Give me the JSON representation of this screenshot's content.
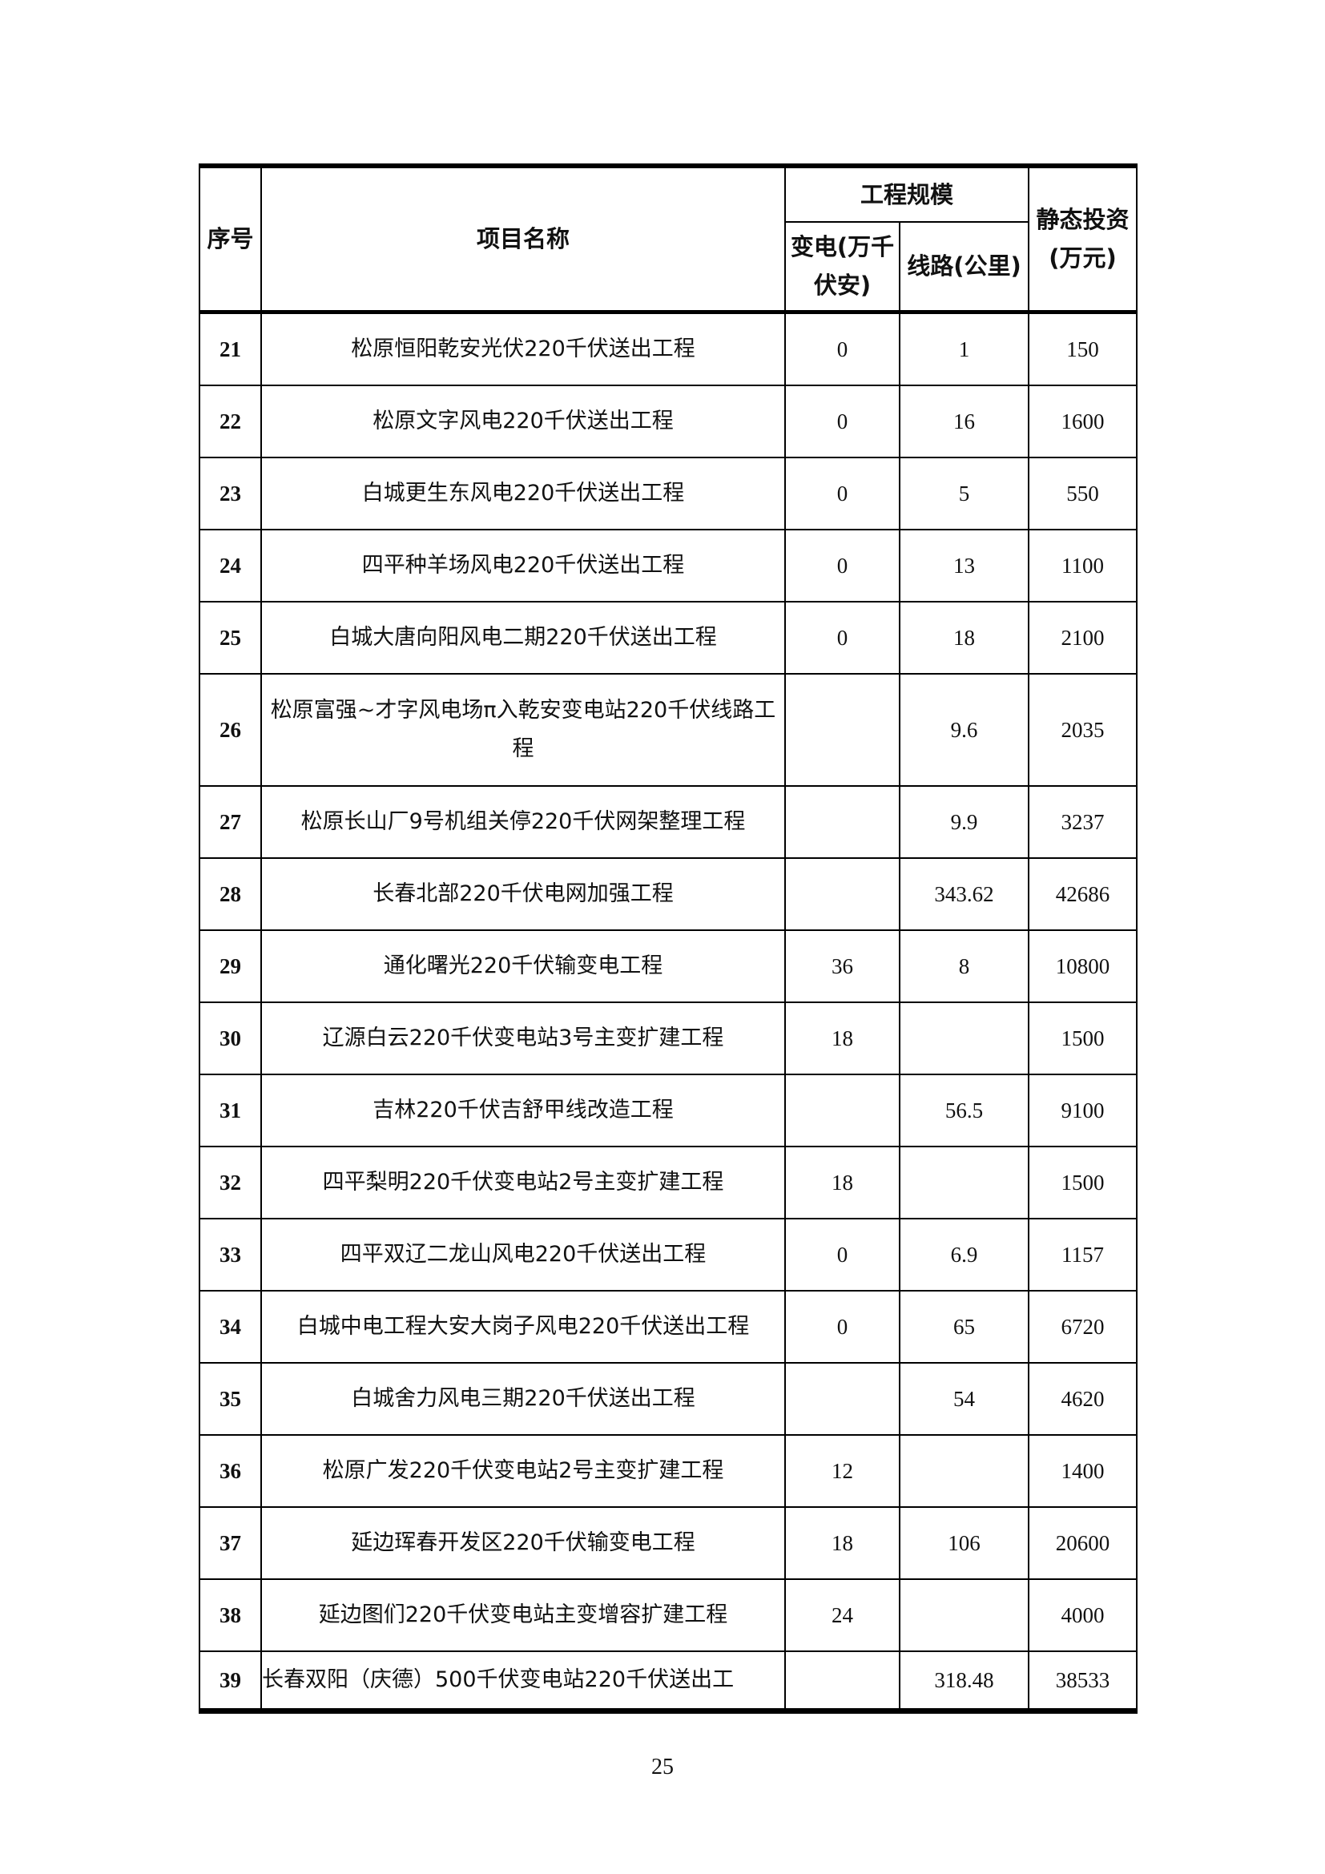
{
  "table": {
    "headers": {
      "no": "序号",
      "name": "项目名称",
      "scale": "工程规模",
      "substation": "变电(万千伏安)",
      "line": "线路(公里)",
      "investment": "静态投资(万元)"
    },
    "rows": [
      {
        "no": "21",
        "name": "松原恒阳乾安光伏220千伏送出工程",
        "substation": "0",
        "line": "1",
        "investment": "150"
      },
      {
        "no": "22",
        "name": "松原文字风电220千伏送出工程",
        "substation": "0",
        "line": "16",
        "investment": "1600"
      },
      {
        "no": "23",
        "name": "白城更生东风电220千伏送出工程",
        "substation": "0",
        "line": "5",
        "investment": "550"
      },
      {
        "no": "24",
        "name": "四平种羊场风电220千伏送出工程",
        "substation": "0",
        "line": "13",
        "investment": "1100"
      },
      {
        "no": "25",
        "name": "白城大唐向阳风电二期220千伏送出工程",
        "substation": "0",
        "line": "18",
        "investment": "2100"
      },
      {
        "no": "26",
        "name": "松原富强~才字风电场π入乾安变电站220千伏线路工程",
        "substation": "",
        "line": "9.6",
        "investment": "2035"
      },
      {
        "no": "27",
        "name": "松原长山厂9号机组关停220千伏网架整理工程",
        "substation": "",
        "line": "9.9",
        "investment": "3237"
      },
      {
        "no": "28",
        "name": "长春北部220千伏电网加强工程",
        "substation": "",
        "line": "343.62",
        "investment": "42686"
      },
      {
        "no": "29",
        "name": "通化曙光220千伏输变电工程",
        "substation": "36",
        "line": "8",
        "investment": "10800"
      },
      {
        "no": "30",
        "name": "辽源白云220千伏变电站3号主变扩建工程",
        "substation": "18",
        "line": "",
        "investment": "1500"
      },
      {
        "no": "31",
        "name": "吉林220千伏吉舒甲线改造工程",
        "substation": "",
        "line": "56.5",
        "investment": "9100"
      },
      {
        "no": "32",
        "name": "四平梨明220千伏变电站2号主变扩建工程",
        "substation": "18",
        "line": "",
        "investment": "1500"
      },
      {
        "no": "33",
        "name": "四平双辽二龙山风电220千伏送出工程",
        "substation": "0",
        "line": "6.9",
        "investment": "1157"
      },
      {
        "no": "34",
        "name": "白城中电工程大安大岗子风电220千伏送出工程",
        "substation": "0",
        "line": "65",
        "investment": "6720"
      },
      {
        "no": "35",
        "name": "白城舍力风电三期220千伏送出工程",
        "substation": "",
        "line": "54",
        "investment": "4620"
      },
      {
        "no": "36",
        "name": "松原广发220千伏变电站2号主变扩建工程",
        "substation": "12",
        "line": "",
        "investment": "1400"
      },
      {
        "no": "37",
        "name": "延边珲春开发区220千伏输变电工程",
        "substation": "18",
        "line": "106",
        "investment": "20600"
      },
      {
        "no": "38",
        "name": "延边图们220千伏变电站主变增容扩建工程",
        "substation": "24",
        "line": "",
        "investment": "4000"
      },
      {
        "no": "39",
        "name": "长春双阳（庆德）500千伏变电站220千伏送出工",
        "substation": "",
        "line": "318.48",
        "investment": "38533"
      }
    ]
  },
  "page_number": "25"
}
